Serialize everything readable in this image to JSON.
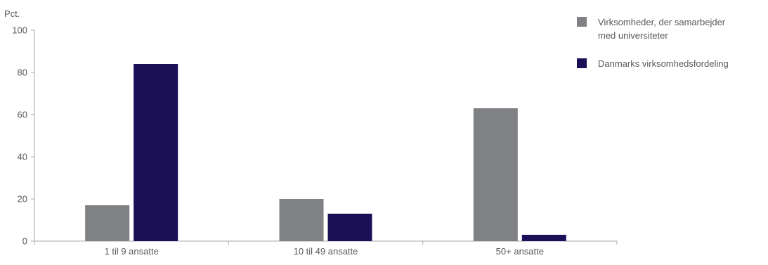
{
  "chart_data": {
    "type": "bar",
    "title": "",
    "ylabel": "Pct.",
    "xlabel": "",
    "ylim": [
      0,
      100
    ],
    "yticks": [
      0,
      20,
      40,
      60,
      80,
      100
    ],
    "grid": false,
    "legend_position": "top-right",
    "categories": [
      "1 til 9 ansatte",
      "10 til 49 ansatte",
      "50+ ansatte"
    ],
    "series": [
      {
        "name": "Virksomheder, der samarbejder med universiteter",
        "name_lines": [
          "Virksomheder, der samarbejder",
          "med universiteter"
        ],
        "color": "#808184",
        "values": [
          17,
          20,
          63
        ]
      },
      {
        "name": "Danmarks virksomhedsfordeling",
        "name_lines": [
          "Danmarks virksomhedsfordeling"
        ],
        "color": "#1b1058",
        "values": [
          84,
          13,
          3
        ]
      }
    ]
  }
}
